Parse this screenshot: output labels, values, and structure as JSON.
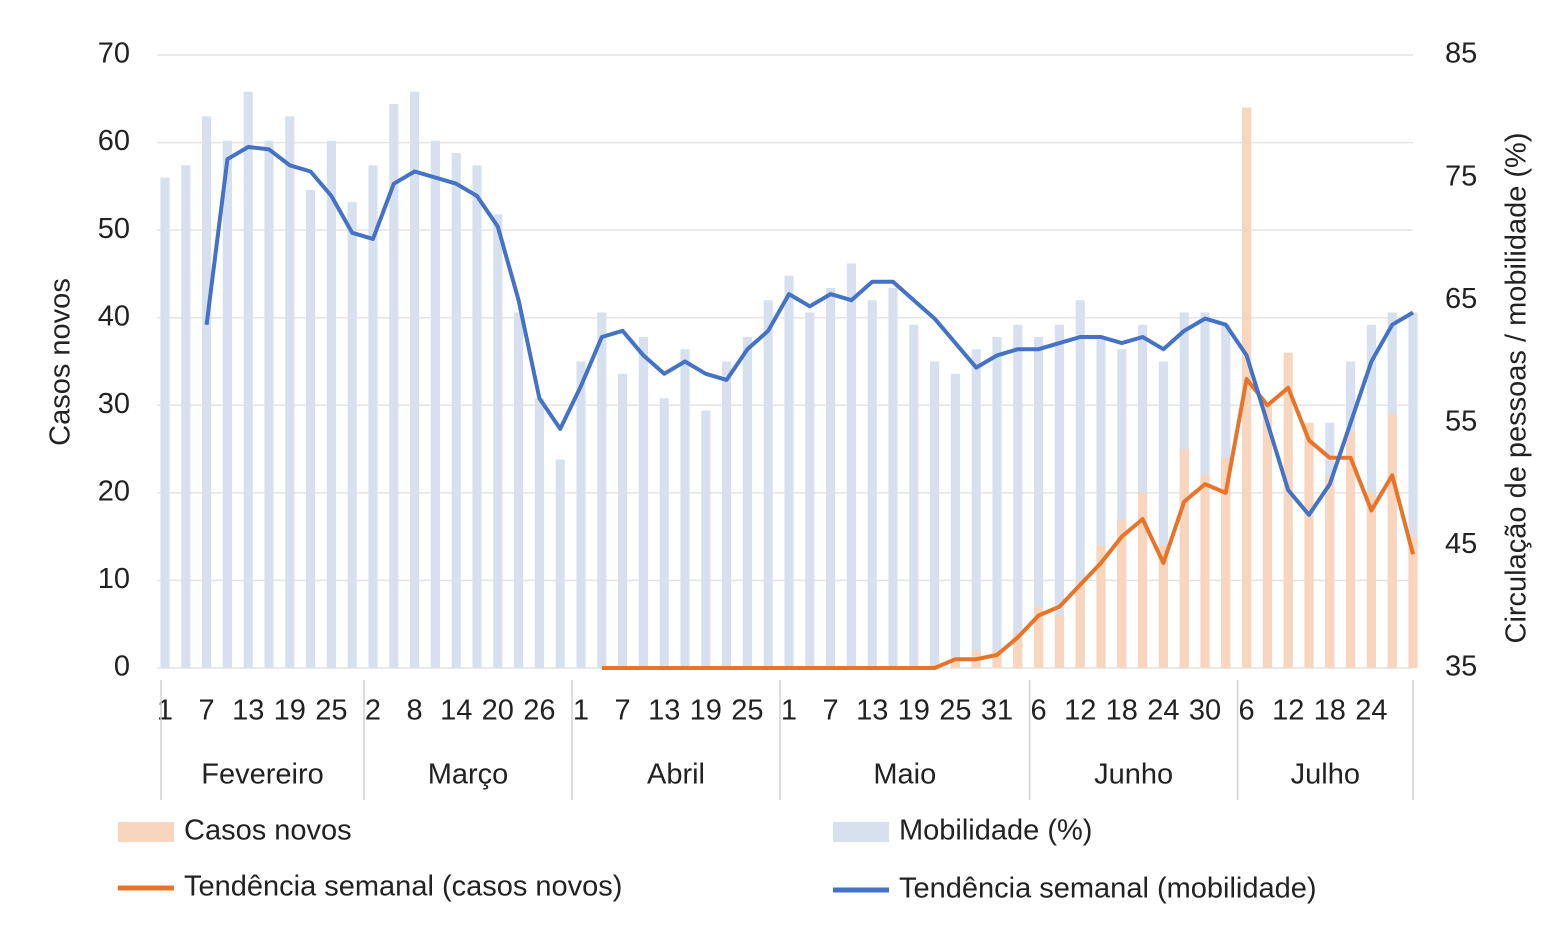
{
  "chart_data": {
    "type": "bar-line",
    "ylabel": "Casos novos",
    "y2label": "Circulação  de pessoas / mobilidade (%)",
    "categories": [
      "1",
      null,
      "7",
      null,
      "13",
      null,
      "19",
      null,
      "25",
      null,
      "2",
      null,
      "8",
      null,
      "14",
      null,
      "20",
      null,
      "26",
      null,
      "1",
      null,
      "7",
      null,
      "13",
      null,
      "19",
      null,
      "25",
      null,
      "1",
      null,
      "7",
      null,
      "13",
      null,
      "19",
      null,
      "25",
      null,
      "31",
      null,
      "6",
      null,
      "12",
      null,
      "18",
      null,
      "24",
      null,
      "30",
      null,
      "6",
      null,
      "12",
      null,
      "18",
      null,
      "24",
      null,
      null
    ],
    "months": [
      "Fevereiro",
      "Março",
      "Abril",
      "Maio",
      "Junho",
      "Julho"
    ],
    "ylim": [
      0,
      70
    ],
    "yticks": [
      0,
      10,
      20,
      30,
      40,
      50,
      60,
      70
    ],
    "y2lim": [
      35,
      85
    ],
    "y2ticks": [
      35,
      45,
      55,
      65,
      75,
      85
    ],
    "grid": true,
    "series": [
      {
        "name": "Mobilidade (%)",
        "kind": "bar",
        "axis": "y2",
        "color": "#d7e0ef",
        "values": [
          75,
          76,
          80,
          78,
          82,
          78,
          80,
          74,
          78,
          73,
          76,
          81,
          82,
          78,
          77,
          76,
          72,
          64,
          57,
          52,
          60,
          64,
          59,
          62,
          57,
          61,
          56,
          60,
          62,
          65,
          67,
          64,
          66,
          68,
          65,
          66,
          63,
          60,
          59,
          61,
          62,
          63,
          62,
          63,
          65,
          62,
          61,
          63,
          60,
          64,
          64,
          63,
          61,
          52,
          46,
          50,
          55,
          60,
          63,
          64,
          64
        ]
      },
      {
        "name": "Casos novos",
        "kind": "bar",
        "color": "#f8d5bd",
        "values": [
          0,
          0,
          0,
          0,
          0,
          0,
          0,
          0,
          0,
          0,
          0,
          0,
          0,
          0,
          0,
          0,
          0,
          0,
          0,
          0,
          0,
          0,
          0,
          0,
          0,
          0,
          0,
          0,
          0,
          0,
          0,
          0,
          0,
          0,
          0,
          0,
          0,
          0,
          1,
          2,
          2,
          4,
          7,
          6,
          10,
          14,
          17,
          20,
          14,
          25,
          22,
          24,
          64,
          30,
          36,
          28,
          22,
          27,
          20,
          29,
          15
        ]
      },
      {
        "name": "Tendência semanal (casos novos)",
        "kind": "line",
        "color": "#e8742a",
        "values": [
          null,
          null,
          null,
          null,
          null,
          null,
          null,
          null,
          null,
          null,
          null,
          null,
          null,
          null,
          null,
          null,
          null,
          null,
          null,
          null,
          null,
          0,
          0,
          0,
          0,
          0,
          0,
          0,
          0,
          0,
          0,
          0,
          0,
          0,
          0,
          0,
          0,
          0,
          1,
          1,
          1.5,
          3.5,
          6,
          7,
          9.5,
          12,
          15,
          17,
          12,
          19,
          21,
          20,
          33,
          30,
          32,
          26,
          24,
          24,
          18,
          22,
          13
        ]
      },
      {
        "name": "Tendência semanal (mobilidade)",
        "kind": "line",
        "axis": "y2",
        "color": "#4472c4",
        "values": [
          null,
          null,
          63,
          76.5,
          77.5,
          77.3,
          76,
          75.5,
          73.5,
          70.5,
          70,
          74.5,
          75.5,
          75,
          74.5,
          73.5,
          71,
          65,
          57,
          54.5,
          58,
          62,
          62.5,
          60.5,
          59,
          60,
          59,
          58.5,
          61,
          62.5,
          65.5,
          64.5,
          65.5,
          65,
          66.5,
          66.5,
          65,
          63.5,
          61.5,
          59.5,
          60.5,
          61,
          61,
          61.5,
          62,
          62,
          61.5,
          62,
          61,
          62.5,
          63.5,
          63,
          60.5,
          55,
          49.5,
          47.5,
          50,
          55,
          60,
          63,
          64
        ]
      }
    ]
  }
}
